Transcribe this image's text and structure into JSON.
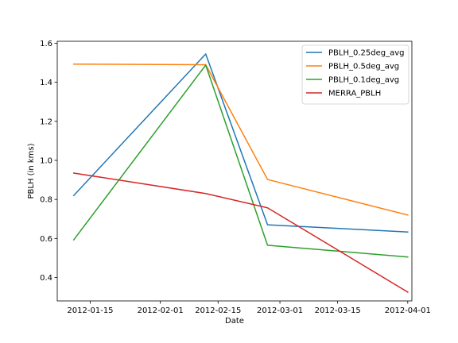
{
  "chart_data": {
    "type": "line",
    "title": "",
    "xlabel": "Date",
    "ylabel": "PBLH (in kms)",
    "x": [
      "2012-01-11",
      "2012-02-12",
      "2012-02-27",
      "2012-04-01"
    ],
    "xlim": [
      "2012-01-07",
      "2012-04-02"
    ],
    "ylim": [
      0.28,
      1.61
    ],
    "x_ticks": [
      "2012-01-15",
      "2012-02-01",
      "2012-02-15",
      "2012-03-01",
      "2012-03-15",
      "2012-04-01"
    ],
    "y_ticks": [
      0.4,
      0.6,
      0.8,
      1.0,
      1.2,
      1.4,
      1.6
    ],
    "y_tick_labels": [
      "0.4",
      "0.6",
      "0.8",
      "1.0",
      "1.2",
      "1.4",
      "1.6"
    ],
    "grid": false,
    "legend_position": "top-right",
    "series": [
      {
        "name": "PBLH_0.25deg_avg",
        "color": "#1f77b4",
        "values": [
          0.82,
          1.545,
          0.67,
          0.633
        ]
      },
      {
        "name": "PBLH_0.5deg_avg",
        "color": "#ff7f0e",
        "values": [
          1.493,
          1.49,
          0.902,
          0.72
        ]
      },
      {
        "name": "PBLH_0.1deg_avg",
        "color": "#2ca02c",
        "values": [
          0.593,
          1.488,
          0.565,
          0.505
        ]
      },
      {
        "name": "MERRA_PBLH",
        "color": "#d62728",
        "values": [
          0.935,
          0.83,
          0.757,
          0.325
        ]
      }
    ]
  }
}
